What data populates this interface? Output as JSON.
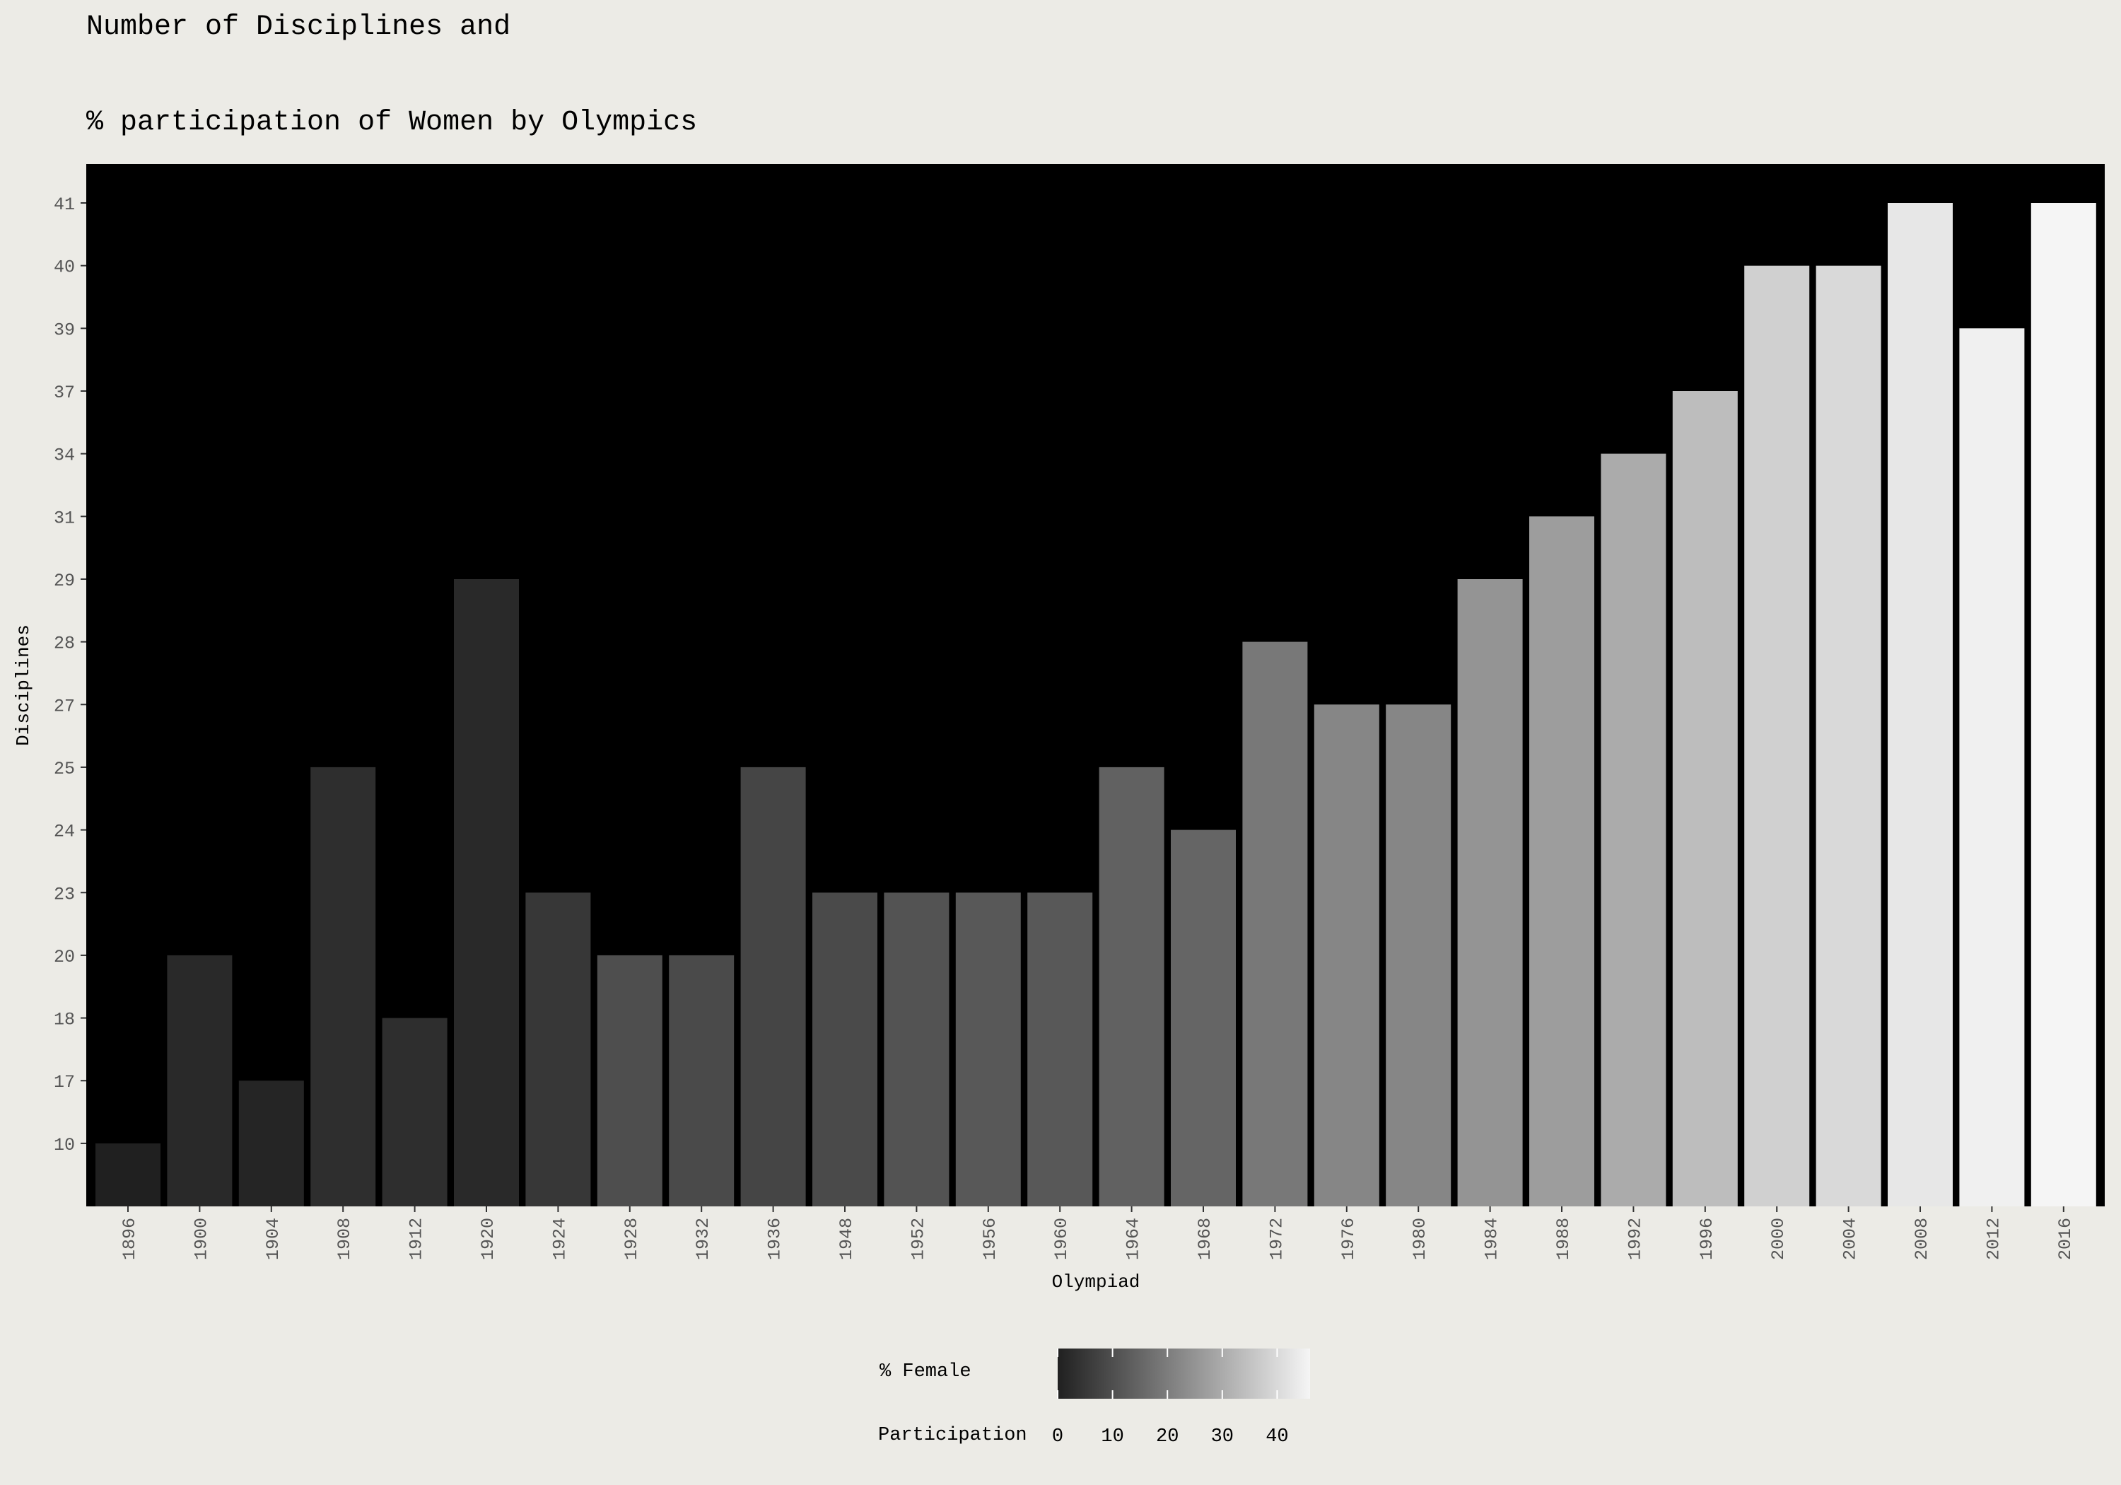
{
  "chart_data": {
    "type": "bar",
    "title_line1": "Number of Disciplines and",
    "title_line2": "% participation of Women by Olympics",
    "xlabel": "Olympiad",
    "ylabel": "Disciplines",
    "categories": [
      "1896",
      "1900",
      "1904",
      "1908",
      "1912",
      "1920",
      "1924",
      "1928",
      "1932",
      "1936",
      "1948",
      "1952",
      "1956",
      "1960",
      "1964",
      "1968",
      "1972",
      "1976",
      "1980",
      "1984",
      "1988",
      "1992",
      "1996",
      "2000",
      "2004",
      "2008",
      "2012",
      "2016"
    ],
    "values": [
      10,
      20,
      17,
      25,
      18,
      29,
      23,
      20,
      20,
      25,
      23,
      23,
      23,
      23,
      25,
      24,
      28,
      27,
      27,
      29,
      31,
      34,
      37,
      40,
      40,
      41,
      39,
      41
    ],
    "y_tick_labels": [
      "10",
      "17",
      "18",
      "20",
      "23",
      "24",
      "25",
      "27",
      "28",
      "29",
      "31",
      "34",
      "37",
      "39",
      "40",
      "41"
    ],
    "pct_female": [
      0,
      2,
      1,
      3,
      3,
      2,
      5,
      10,
      9,
      8,
      9,
      11,
      12,
      12,
      14,
      15,
      19,
      22,
      22,
      25,
      27,
      30,
      34,
      38,
      40,
      43,
      45,
      46
    ],
    "y_axis": "discrete",
    "grid": false,
    "legend": {
      "title_line1": "% Female",
      "title_line2": "Participation",
      "ticks": [
        "0",
        "10",
        "20",
        "30",
        "40"
      ],
      "range": [
        0,
        46
      ],
      "placement": "bottom"
    },
    "colors": {
      "panel_background": "#000000",
      "page_background": "#ecebe6",
      "bar_low": "#202020",
      "bar_high": "#f5f5f5"
    }
  }
}
